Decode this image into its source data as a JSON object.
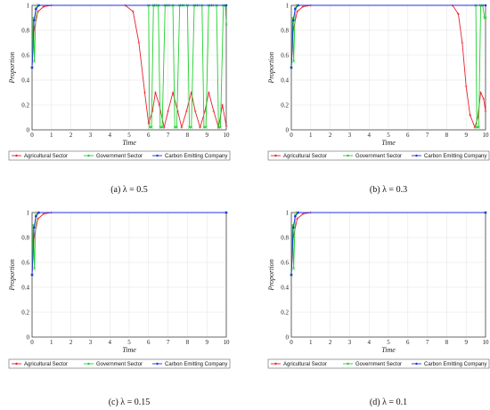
{
  "figure": {
    "legend": [
      "Agricultural Sector",
      "Government Sector",
      "Carbon Emitting Company"
    ],
    "xlabel": "Time",
    "ylabel": "Proportion",
    "colors": {
      "agri": "#e8212b",
      "gov": "#21d12e",
      "carbon": "#2232e0"
    }
  },
  "chart_data": [
    {
      "type": "line",
      "panel": "a",
      "caption": "(a) λ = 0.5",
      "xlabel": "Time",
      "ylabel": "Proportion",
      "xlim": [
        0,
        10
      ],
      "ylim": [
        0,
        1
      ],
      "xticks": [
        "0",
        "1",
        "2",
        "3",
        "4",
        "5",
        "6",
        "7",
        "8",
        "9",
        "10"
      ],
      "yticks": [
        "0",
        "0.2",
        "0.4",
        "0.6",
        "0.8",
        "1"
      ],
      "grid": true,
      "legend_position": "bottom",
      "series": [
        {
          "name": "Agricultural Sector",
          "x": [
            0,
            0.1,
            0.3,
            0.6,
            1,
            4.8,
            5.2,
            5.5,
            5.8,
            6.0,
            6.2,
            6.35,
            6.55,
            6.8,
            7.0,
            7.25,
            7.5,
            7.7,
            7.95,
            8.2,
            8.4,
            8.65,
            8.9,
            9.1,
            9.35,
            9.6,
            9.8,
            10
          ],
          "y": [
            0.5,
            0.8,
            0.95,
            0.99,
            1,
            1,
            0.95,
            0.7,
            0.3,
            0.05,
            0.15,
            0.3,
            0.2,
            0.02,
            0.15,
            0.3,
            0.15,
            0.02,
            0.15,
            0.3,
            0.15,
            0.02,
            0.15,
            0.3,
            0.15,
            0.02,
            0.2,
            0.03
          ]
        },
        {
          "name": "Government Sector",
          "x": [
            0,
            0.06,
            0.12,
            0.2,
            0.3,
            6.0,
            6.05,
            6.15,
            6.25,
            6.35,
            6.5,
            6.6,
            6.7,
            6.85,
            6.95,
            7.05,
            7.25,
            7.35,
            7.45,
            7.6,
            7.7,
            7.8,
            8.0,
            8.1,
            8.2,
            8.35,
            8.45,
            8.55,
            8.75,
            8.85,
            8.95,
            9.1,
            9.2,
            9.3,
            9.5,
            9.6,
            9.7,
            9.85,
            9.95,
            10
          ],
          "y": [
            0.5,
            0.9,
            0.55,
            0.98,
            1,
            1,
            0.02,
            0.02,
            1,
            1,
            1,
            0.02,
            0.02,
            1,
            1,
            1,
            1,
            0.02,
            0.02,
            1,
            1,
            1,
            1,
            0.02,
            0.02,
            1,
            1,
            1,
            1,
            0.02,
            0.02,
            1,
            1,
            1,
            1,
            0.02,
            0.02,
            1,
            1,
            0.85
          ]
        },
        {
          "name": "Carbon Emitting Company",
          "x": [
            0,
            0.1,
            0.2,
            0.35,
            10
          ],
          "y": [
            0.5,
            0.88,
            0.97,
            1,
            1
          ]
        }
      ]
    },
    {
      "type": "line",
      "panel": "b",
      "caption": "(b) λ = 0.3",
      "xlabel": "Time",
      "ylabel": "Proportion",
      "xlim": [
        0,
        10
      ],
      "ylim": [
        0,
        1
      ],
      "xticks": [
        "0",
        "1",
        "2",
        "3",
        "4",
        "5",
        "6",
        "7",
        "8",
        "9",
        "10"
      ],
      "yticks": [
        "0",
        "0.2",
        "0.4",
        "0.6",
        "0.8",
        "1"
      ],
      "grid": true,
      "legend_position": "bottom",
      "series": [
        {
          "name": "Agricultural Sector",
          "x": [
            0,
            0.1,
            0.3,
            0.6,
            1,
            8.3,
            8.6,
            8.8,
            9.0,
            9.2,
            9.45,
            9.6,
            9.75,
            9.9,
            10
          ],
          "y": [
            0.5,
            0.8,
            0.95,
            0.99,
            1,
            1,
            0.93,
            0.7,
            0.35,
            0.12,
            0.02,
            0.1,
            0.3,
            0.25,
            0.15
          ]
        },
        {
          "name": "Government Sector",
          "x": [
            0,
            0.06,
            0.12,
            0.2,
            0.3,
            9.5,
            9.55,
            9.65,
            9.75,
            9.85,
            9.95,
            10
          ],
          "y": [
            0.5,
            0.9,
            0.55,
            0.98,
            1,
            1,
            0.02,
            0.02,
            1,
            1,
            0.9,
            0.9
          ]
        },
        {
          "name": "Carbon Emitting Company",
          "x": [
            0,
            0.1,
            0.2,
            0.35,
            10
          ],
          "y": [
            0.5,
            0.88,
            0.97,
            1,
            1
          ]
        }
      ]
    },
    {
      "type": "line",
      "panel": "c",
      "caption": "(c) λ = 0.15",
      "xlabel": "Time",
      "ylabel": "Proportion",
      "xlim": [
        0,
        10
      ],
      "ylim": [
        0,
        1
      ],
      "xticks": [
        "0",
        "1",
        "2",
        "3",
        "4",
        "5",
        "6",
        "7",
        "8",
        "9",
        "10"
      ],
      "yticks": [
        "0",
        "0.2",
        "0.4",
        "0.6",
        "0.8",
        "1"
      ],
      "grid": true,
      "legend_position": "bottom",
      "series": [
        {
          "name": "Agricultural Sector",
          "x": [
            0,
            0.1,
            0.3,
            0.6,
            1,
            10
          ],
          "y": [
            0.5,
            0.8,
            0.95,
            0.99,
            1,
            1
          ]
        },
        {
          "name": "Government Sector",
          "x": [
            0,
            0.06,
            0.12,
            0.2,
            0.3,
            10
          ],
          "y": [
            0.5,
            0.9,
            0.55,
            0.98,
            1,
            1
          ]
        },
        {
          "name": "Carbon Emitting Company",
          "x": [
            0,
            0.1,
            0.2,
            0.35,
            10
          ],
          "y": [
            0.5,
            0.88,
            0.97,
            1,
            1
          ]
        }
      ]
    },
    {
      "type": "line",
      "panel": "d",
      "caption": "(d) λ = 0.1",
      "xlabel": "Time",
      "ylabel": "Proportion",
      "xlim": [
        0,
        10
      ],
      "ylim": [
        0,
        1
      ],
      "xticks": [
        "0",
        "1",
        "2",
        "3",
        "4",
        "5",
        "6",
        "7",
        "8",
        "9",
        "10"
      ],
      "yticks": [
        "0",
        "0.2",
        "0.4",
        "0.6",
        "0.8",
        "1"
      ],
      "grid": true,
      "legend_position": "bottom",
      "series": [
        {
          "name": "Agricultural Sector",
          "x": [
            0,
            0.1,
            0.3,
            0.6,
            1,
            10
          ],
          "y": [
            0.5,
            0.8,
            0.95,
            0.99,
            1,
            1
          ]
        },
        {
          "name": "Government Sector",
          "x": [
            0,
            0.06,
            0.12,
            0.2,
            0.3,
            10
          ],
          "y": [
            0.5,
            0.9,
            0.55,
            0.98,
            1,
            1
          ]
        },
        {
          "name": "Carbon Emitting Company",
          "x": [
            0,
            0.1,
            0.2,
            0.35,
            10
          ],
          "y": [
            0.5,
            0.88,
            0.97,
            1,
            1
          ]
        }
      ]
    }
  ]
}
